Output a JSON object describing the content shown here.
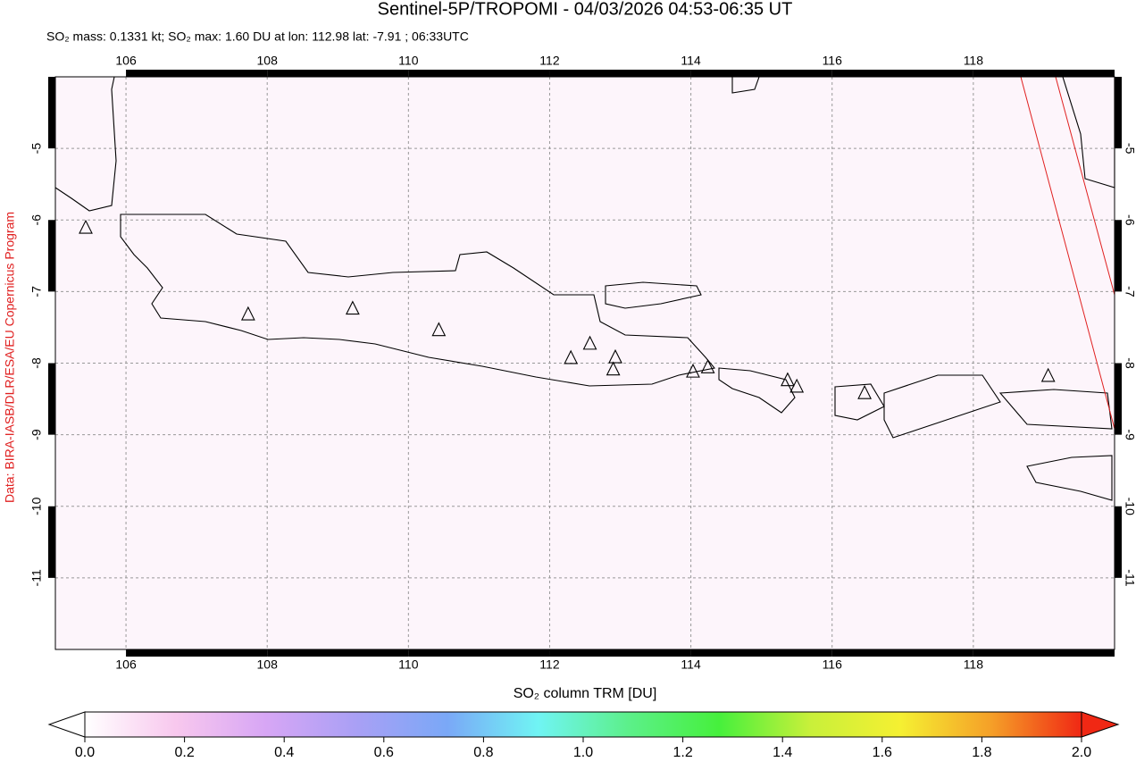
{
  "header": {
    "title": "Sentinel-5P/TROPOMI - 04/03/2026 04:53-06:35 UT",
    "subtitle": "SO₂ mass: 0.1331 kt; SO₂ max: 1.60 DU at lon: 112.98 lat: -7.91 ; 06:33UTC"
  },
  "credit": "Data: BIRA-IASB/DLR/ESA/EU Copernicus Program",
  "map": {
    "xlim": [
      105,
      120
    ],
    "ylim": [
      -12,
      -4
    ],
    "xticks": [
      106,
      108,
      110,
      112,
      114,
      116,
      118
    ],
    "yticks": [
      -5,
      -6,
      -7,
      -8,
      -9,
      -10,
      -11
    ],
    "grid": true,
    "volcanoes": [
      {
        "lon": 105.43,
        "lat": -6.11
      },
      {
        "lon": 107.73,
        "lat": -7.32
      },
      {
        "lon": 109.21,
        "lat": -7.24
      },
      {
        "lon": 110.43,
        "lat": -7.54
      },
      {
        "lon": 112.3,
        "lat": -7.93
      },
      {
        "lon": 112.57,
        "lat": -7.73
      },
      {
        "lon": 112.93,
        "lat": -7.92
      },
      {
        "lon": 112.9,
        "lat": -8.09
      },
      {
        "lon": 114.03,
        "lat": -8.12
      },
      {
        "lon": 114.24,
        "lat": -8.06
      },
      {
        "lon": 115.37,
        "lat": -8.24
      },
      {
        "lon": 115.5,
        "lat": -8.33
      },
      {
        "lon": 116.46,
        "lat": -8.42
      },
      {
        "lon": 119.06,
        "lat": -8.18
      }
    ]
  },
  "colorbar": {
    "label": "SO₂ column TRM [DU]",
    "lim": [
      0,
      2
    ],
    "ticks": [
      {
        "value": 0,
        "label": "0.0"
      },
      {
        "value": 0.2,
        "label": "0.2"
      },
      {
        "value": 0.4,
        "label": "0.4"
      },
      {
        "value": 0.6,
        "label": "0.6"
      },
      {
        "value": 0.8,
        "label": "0.8"
      },
      {
        "value": 1,
        "label": "1.0"
      },
      {
        "value": 1.2,
        "label": "1.2"
      },
      {
        "value": 1.4,
        "label": "1.4"
      },
      {
        "value": 1.6,
        "label": "1.6"
      },
      {
        "value": 1.8,
        "label": "1.8"
      },
      {
        "value": 2,
        "label": "2.0"
      }
    ],
    "colors": [
      "#ffffff",
      "#f8c8ee",
      "#d7a6f5",
      "#a9a0f5",
      "#7aa8f7",
      "#70f4f4",
      "#5cf08a",
      "#46f03c",
      "#c8f03a",
      "#f5f032",
      "#f5a028",
      "#f02814"
    ]
  }
}
